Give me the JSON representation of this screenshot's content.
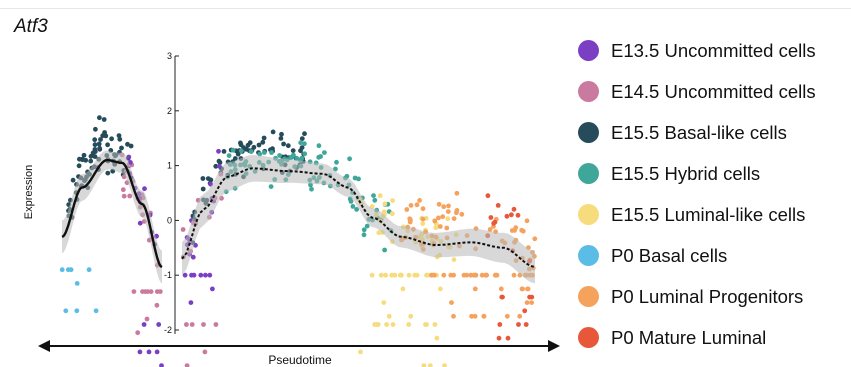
{
  "chart_data": {
    "type": "scatter",
    "title": "Atf3",
    "xlabel": "Pseudotime",
    "ylabel": "Expression",
    "ylim": [
      -2,
      3
    ],
    "yticks": [
      "3",
      "2",
      "1",
      "0",
      "-1",
      "-2"
    ],
    "series": [
      {
        "name": "E13.5 Uncommitted cells",
        "color": "#7b3fc4"
      },
      {
        "name": "E14.5 Uncommitted cells",
        "color": "#c97a9e"
      },
      {
        "name": "E15.5 Basal-like cells",
        "color": "#264b5a"
      },
      {
        "name": "E15.5 Hybrid cells",
        "color": "#3fa69a"
      },
      {
        "name": "E15.5 Luminal-like cells",
        "color": "#f6dc7c"
      },
      {
        "name": "P0 Basal cells",
        "color": "#5bbde6"
      },
      {
        "name": "P0 Luminal Progenitors",
        "color": "#f5a25d"
      },
      {
        "name": "P0 Mature Luminal",
        "color": "#e8573a"
      }
    ],
    "left_branch": {
      "x_range": [
        0,
        1
      ],
      "trend": [
        [
          0.0,
          -0.3
        ],
        [
          0.2,
          0.6
        ],
        [
          0.45,
          1.1
        ],
        [
          0.6,
          1.05
        ],
        [
          0.8,
          0.3
        ],
        [
          1.0,
          -0.85
        ]
      ]
    },
    "right_branch": {
      "x_range": [
        0,
        1
      ],
      "trend": [
        [
          0.0,
          -0.7
        ],
        [
          0.06,
          0.2
        ],
        [
          0.13,
          0.8
        ],
        [
          0.2,
          0.95
        ],
        [
          0.3,
          0.9
        ],
        [
          0.4,
          0.85
        ],
        [
          0.47,
          0.6
        ],
        [
          0.54,
          0.05
        ],
        [
          0.62,
          -0.3
        ],
        [
          0.72,
          -0.45
        ],
        [
          0.82,
          -0.4
        ],
        [
          0.91,
          -0.5
        ],
        [
          1.0,
          -0.85
        ]
      ]
    }
  },
  "legend_entries": [
    "E13.5 Uncommitted cells",
    "E14.5 Uncommitted cells",
    "E15.5 Basal-like cells",
    "E15.5 Hybrid cells",
    "E15.5 Luminal-like cells",
    "P0 Basal cells",
    "P0 Luminal Progenitors",
    "P0 Mature Luminal"
  ]
}
